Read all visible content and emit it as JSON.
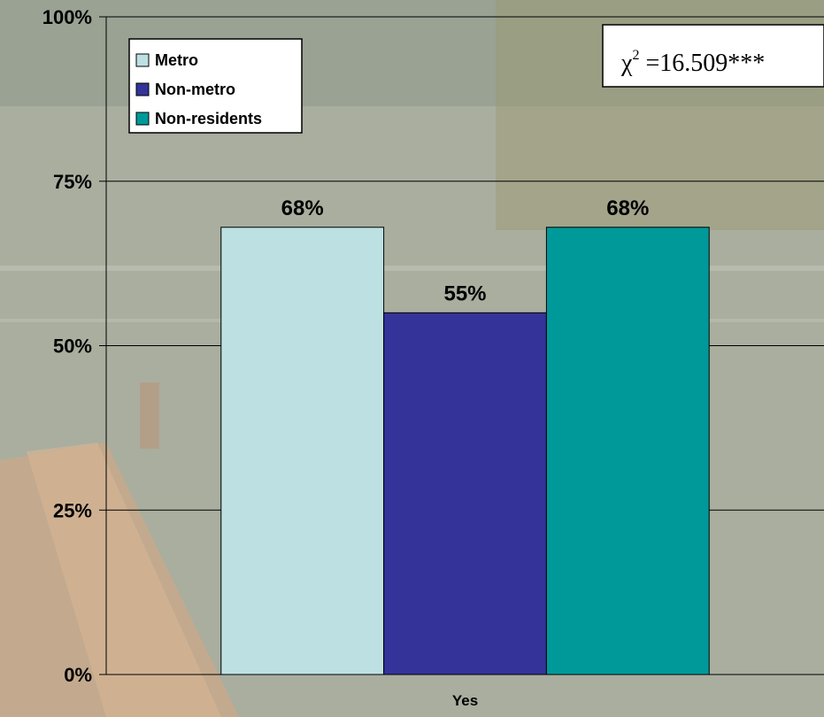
{
  "chart_data": {
    "type": "bar",
    "categories": [
      "Yes"
    ],
    "series": [
      {
        "name": "Metro",
        "values": [
          68
        ],
        "color": "#bde0e3"
      },
      {
        "name": "Non-metro",
        "values": [
          55
        ],
        "color": "#333399"
      },
      {
        "name": "Non-residents",
        "values": [
          68
        ],
        "color": "#009999"
      }
    ],
    "data_labels": [
      "68%",
      "55%",
      "68%"
    ],
    "yticks": [
      "0%",
      "25%",
      "50%",
      "75%",
      "100%"
    ],
    "ylim": [
      0,
      100
    ],
    "grid": true,
    "legend_position": "top-left",
    "annotation": {
      "symbol": "χ",
      "superscript": "2",
      "text": " =16.509***"
    }
  }
}
